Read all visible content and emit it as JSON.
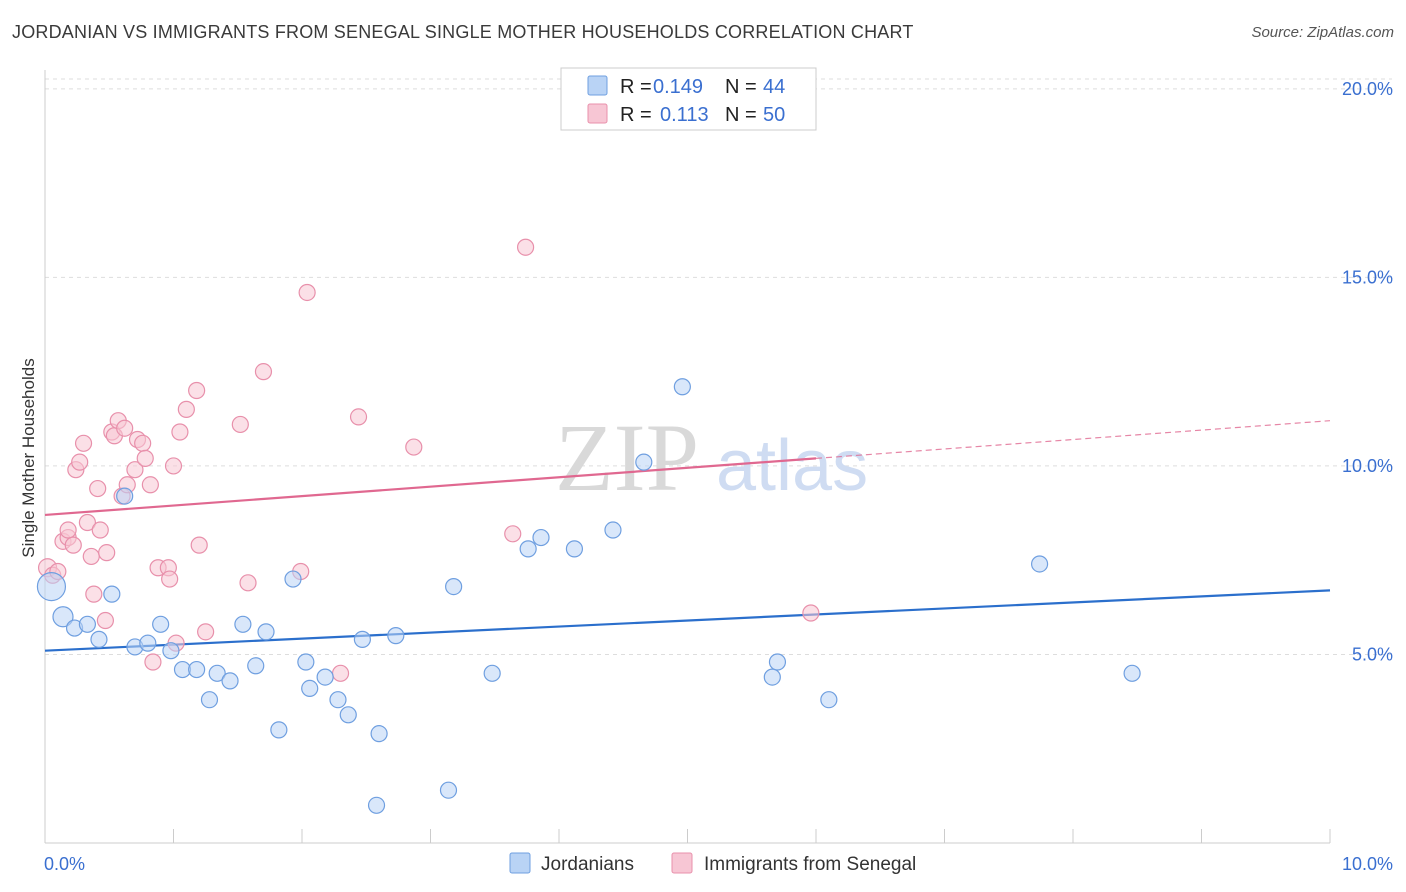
{
  "title": "JORDANIAN VS IMMIGRANTS FROM SENEGAL SINGLE MOTHER HOUSEHOLDS CORRELATION CHART",
  "source": "Source: ZipAtlas.com",
  "watermark": {
    "zip": "ZIP",
    "atlas": "atlas"
  },
  "legend": {
    "r_label": "R =",
    "n_label": "N =",
    "jordanians": {
      "r": "0.149",
      "n": "44"
    },
    "senegal": {
      "r": "0.113",
      "n": "50"
    }
  },
  "colors": {
    "blue_fill": "#b9d3f5",
    "blue_stroke": "#6f9fe0",
    "blue_line": "#2b6fcc",
    "pink_fill": "#f7c6d4",
    "pink_stroke": "#e890ab",
    "pink_line": "#e06890",
    "value_text": "#3a6fd0"
  },
  "chart_data": {
    "type": "scatter",
    "xlabel": "",
    "ylabel": "Single Mother Households",
    "xlim": [
      0,
      10
    ],
    "ylim": [
      0,
      20.5
    ],
    "x_tick_labels": [
      "0.0%",
      "10.0%"
    ],
    "y_ticks": [
      5,
      10,
      15,
      20
    ],
    "y_tick_labels": [
      "5.0%",
      "10.0%",
      "15.0%",
      "20.0%"
    ],
    "grid": true,
    "series": [
      {
        "name": "Jordanians",
        "trend": {
          "x0": 0,
          "y0": 5.1,
          "x1": 10,
          "y1": 6.7,
          "x_solid_end": 10
        },
        "points": [
          [
            0.05,
            6.8,
            14
          ],
          [
            0.14,
            6.0,
            10
          ],
          [
            0.23,
            5.7,
            8
          ],
          [
            0.33,
            5.8,
            8
          ],
          [
            0.42,
            5.4,
            8
          ],
          [
            0.52,
            6.6,
            8
          ],
          [
            0.62,
            9.2,
            8
          ],
          [
            0.7,
            5.2,
            8
          ],
          [
            0.8,
            5.3,
            8
          ],
          [
            0.9,
            5.8,
            8
          ],
          [
            0.98,
            5.1,
            8
          ],
          [
            1.07,
            4.6,
            8
          ],
          [
            1.18,
            4.6,
            8
          ],
          [
            1.28,
            3.8,
            8
          ],
          [
            1.34,
            4.5,
            8
          ],
          [
            1.44,
            4.3,
            8
          ],
          [
            1.54,
            5.8,
            8
          ],
          [
            1.64,
            4.7,
            8
          ],
          [
            1.72,
            5.6,
            8
          ],
          [
            1.82,
            3.0,
            8
          ],
          [
            1.93,
            7.0,
            8
          ],
          [
            2.03,
            4.8,
            8
          ],
          [
            2.06,
            4.1,
            8
          ],
          [
            2.18,
            4.4,
            8
          ],
          [
            2.28,
            3.8,
            8
          ],
          [
            2.36,
            3.4,
            8
          ],
          [
            2.47,
            5.4,
            8
          ],
          [
            2.6,
            2.9,
            8
          ],
          [
            2.73,
            5.5,
            8
          ],
          [
            2.58,
            1.0,
            8
          ],
          [
            3.14,
            1.4,
            8
          ],
          [
            3.18,
            6.8,
            8
          ],
          [
            3.48,
            4.5,
            8
          ],
          [
            3.76,
            7.8,
            8
          ],
          [
            3.86,
            8.1,
            8
          ],
          [
            4.12,
            7.8,
            8
          ],
          [
            4.42,
            8.3,
            8
          ],
          [
            4.66,
            10.1,
            8
          ],
          [
            4.96,
            12.1,
            8
          ],
          [
            5.66,
            4.4,
            8
          ],
          [
            5.7,
            4.8,
            8
          ],
          [
            6.1,
            3.8,
            8
          ],
          [
            7.74,
            7.4,
            8
          ],
          [
            8.46,
            4.5,
            8
          ]
        ]
      },
      {
        "name": "Immigrants from Senegal",
        "trend": {
          "x0": 0,
          "y0": 8.7,
          "x1": 10,
          "y1": 11.2,
          "x_solid_end": 6.0
        },
        "points": [
          [
            0.02,
            7.3,
            9
          ],
          [
            0.06,
            7.1,
            8
          ],
          [
            0.1,
            7.2,
            8
          ],
          [
            0.14,
            8.0,
            8
          ],
          [
            0.18,
            8.1,
            8
          ],
          [
            0.18,
            8.3,
            8
          ],
          [
            0.22,
            7.9,
            8
          ],
          [
            0.24,
            9.9,
            8
          ],
          [
            0.27,
            10.1,
            8
          ],
          [
            0.3,
            10.6,
            8
          ],
          [
            0.33,
            8.5,
            8
          ],
          [
            0.36,
            7.6,
            8
          ],
          [
            0.38,
            6.6,
            8
          ],
          [
            0.41,
            9.4,
            8
          ],
          [
            0.43,
            8.3,
            8
          ],
          [
            0.47,
            5.9,
            8
          ],
          [
            0.48,
            7.7,
            8
          ],
          [
            0.52,
            10.9,
            8
          ],
          [
            0.54,
            10.8,
            8
          ],
          [
            0.57,
            11.2,
            8
          ],
          [
            0.6,
            9.2,
            8
          ],
          [
            0.62,
            11.0,
            8
          ],
          [
            0.64,
            9.5,
            8
          ],
          [
            0.7,
            9.9,
            8
          ],
          [
            0.72,
            10.7,
            8
          ],
          [
            0.76,
            10.6,
            8
          ],
          [
            0.78,
            10.2,
            8
          ],
          [
            0.82,
            9.5,
            8
          ],
          [
            0.84,
            4.8,
            8
          ],
          [
            0.88,
            7.3,
            8
          ],
          [
            0.96,
            7.3,
            8
          ],
          [
            0.97,
            7.0,
            8
          ],
          [
            1.0,
            10.0,
            8
          ],
          [
            1.02,
            5.3,
            8
          ],
          [
            1.05,
            10.9,
            8
          ],
          [
            1.1,
            11.5,
            8
          ],
          [
            1.18,
            12.0,
            8
          ],
          [
            1.2,
            7.9,
            8
          ],
          [
            1.25,
            5.6,
            8
          ],
          [
            1.52,
            11.1,
            8
          ],
          [
            1.58,
            6.9,
            8
          ],
          [
            1.7,
            12.5,
            8
          ],
          [
            1.99,
            7.2,
            8
          ],
          [
            2.04,
            14.6,
            8
          ],
          [
            2.3,
            4.5,
            8
          ],
          [
            2.44,
            11.3,
            8
          ],
          [
            2.87,
            10.5,
            8
          ],
          [
            3.64,
            8.2,
            8
          ],
          [
            3.74,
            15.8,
            8
          ],
          [
            5.96,
            6.1,
            8
          ]
        ]
      }
    ]
  },
  "bottom_legend": {
    "jordanians": "Jordanians",
    "senegal": "Immigrants from Senegal"
  }
}
